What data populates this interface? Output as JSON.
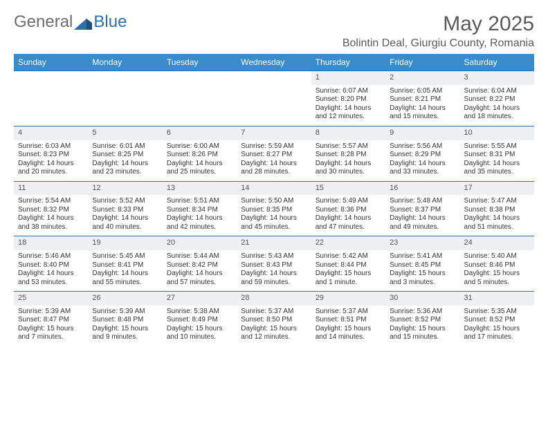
{
  "logo": {
    "part1": "General",
    "part2": "Blue"
  },
  "title": "May 2025",
  "location": "Bolintin Deal, Giurgiu County, Romania",
  "colors": {
    "header_bg": "#3a8bc9",
    "header_text": "#ffffff",
    "row_border": "#2f6fa7",
    "daynum_bg": "#eef0f2",
    "body_text": "#333333",
    "title_text": "#5a5a5a"
  },
  "dayNames": [
    "Sunday",
    "Monday",
    "Tuesday",
    "Wednesday",
    "Thursday",
    "Friday",
    "Saturday"
  ],
  "weeks": [
    [
      null,
      null,
      null,
      null,
      {
        "n": "1",
        "sr": "6:07 AM",
        "ss": "8:20 PM",
        "dl": "14 hours and 12 minutes."
      },
      {
        "n": "2",
        "sr": "6:05 AM",
        "ss": "8:21 PM",
        "dl": "14 hours and 15 minutes."
      },
      {
        "n": "3",
        "sr": "6:04 AM",
        "ss": "8:22 PM",
        "dl": "14 hours and 18 minutes."
      }
    ],
    [
      {
        "n": "4",
        "sr": "6:03 AM",
        "ss": "8:23 PM",
        "dl": "14 hours and 20 minutes."
      },
      {
        "n": "5",
        "sr": "6:01 AM",
        "ss": "8:25 PM",
        "dl": "14 hours and 23 minutes."
      },
      {
        "n": "6",
        "sr": "6:00 AM",
        "ss": "8:26 PM",
        "dl": "14 hours and 25 minutes."
      },
      {
        "n": "7",
        "sr": "5:59 AM",
        "ss": "8:27 PM",
        "dl": "14 hours and 28 minutes."
      },
      {
        "n": "8",
        "sr": "5:57 AM",
        "ss": "8:28 PM",
        "dl": "14 hours and 30 minutes."
      },
      {
        "n": "9",
        "sr": "5:56 AM",
        "ss": "8:29 PM",
        "dl": "14 hours and 33 minutes."
      },
      {
        "n": "10",
        "sr": "5:55 AM",
        "ss": "8:31 PM",
        "dl": "14 hours and 35 minutes."
      }
    ],
    [
      {
        "n": "11",
        "sr": "5:54 AM",
        "ss": "8:32 PM",
        "dl": "14 hours and 38 minutes."
      },
      {
        "n": "12",
        "sr": "5:52 AM",
        "ss": "8:33 PM",
        "dl": "14 hours and 40 minutes."
      },
      {
        "n": "13",
        "sr": "5:51 AM",
        "ss": "8:34 PM",
        "dl": "14 hours and 42 minutes."
      },
      {
        "n": "14",
        "sr": "5:50 AM",
        "ss": "8:35 PM",
        "dl": "14 hours and 45 minutes."
      },
      {
        "n": "15",
        "sr": "5:49 AM",
        "ss": "8:36 PM",
        "dl": "14 hours and 47 minutes."
      },
      {
        "n": "16",
        "sr": "5:48 AM",
        "ss": "8:37 PM",
        "dl": "14 hours and 49 minutes."
      },
      {
        "n": "17",
        "sr": "5:47 AM",
        "ss": "8:38 PM",
        "dl": "14 hours and 51 minutes."
      }
    ],
    [
      {
        "n": "18",
        "sr": "5:46 AM",
        "ss": "8:40 PM",
        "dl": "14 hours and 53 minutes."
      },
      {
        "n": "19",
        "sr": "5:45 AM",
        "ss": "8:41 PM",
        "dl": "14 hours and 55 minutes."
      },
      {
        "n": "20",
        "sr": "5:44 AM",
        "ss": "8:42 PM",
        "dl": "14 hours and 57 minutes."
      },
      {
        "n": "21",
        "sr": "5:43 AM",
        "ss": "8:43 PM",
        "dl": "14 hours and 59 minutes."
      },
      {
        "n": "22",
        "sr": "5:42 AM",
        "ss": "8:44 PM",
        "dl": "15 hours and 1 minute."
      },
      {
        "n": "23",
        "sr": "5:41 AM",
        "ss": "8:45 PM",
        "dl": "15 hours and 3 minutes."
      },
      {
        "n": "24",
        "sr": "5:40 AM",
        "ss": "8:46 PM",
        "dl": "15 hours and 5 minutes."
      }
    ],
    [
      {
        "n": "25",
        "sr": "5:39 AM",
        "ss": "8:47 PM",
        "dl": "15 hours and 7 minutes."
      },
      {
        "n": "26",
        "sr": "5:39 AM",
        "ss": "8:48 PM",
        "dl": "15 hours and 9 minutes."
      },
      {
        "n": "27",
        "sr": "5:38 AM",
        "ss": "8:49 PM",
        "dl": "15 hours and 10 minutes."
      },
      {
        "n": "28",
        "sr": "5:37 AM",
        "ss": "8:50 PM",
        "dl": "15 hours and 12 minutes."
      },
      {
        "n": "29",
        "sr": "5:37 AM",
        "ss": "8:51 PM",
        "dl": "15 hours and 14 minutes."
      },
      {
        "n": "30",
        "sr": "5:36 AM",
        "ss": "8:52 PM",
        "dl": "15 hours and 15 minutes."
      },
      {
        "n": "31",
        "sr": "5:35 AM",
        "ss": "8:52 PM",
        "dl": "15 hours and 17 minutes."
      }
    ]
  ],
  "labels": {
    "sunrise": "Sunrise: ",
    "sunset": "Sunset: ",
    "daylight": "Daylight: "
  }
}
